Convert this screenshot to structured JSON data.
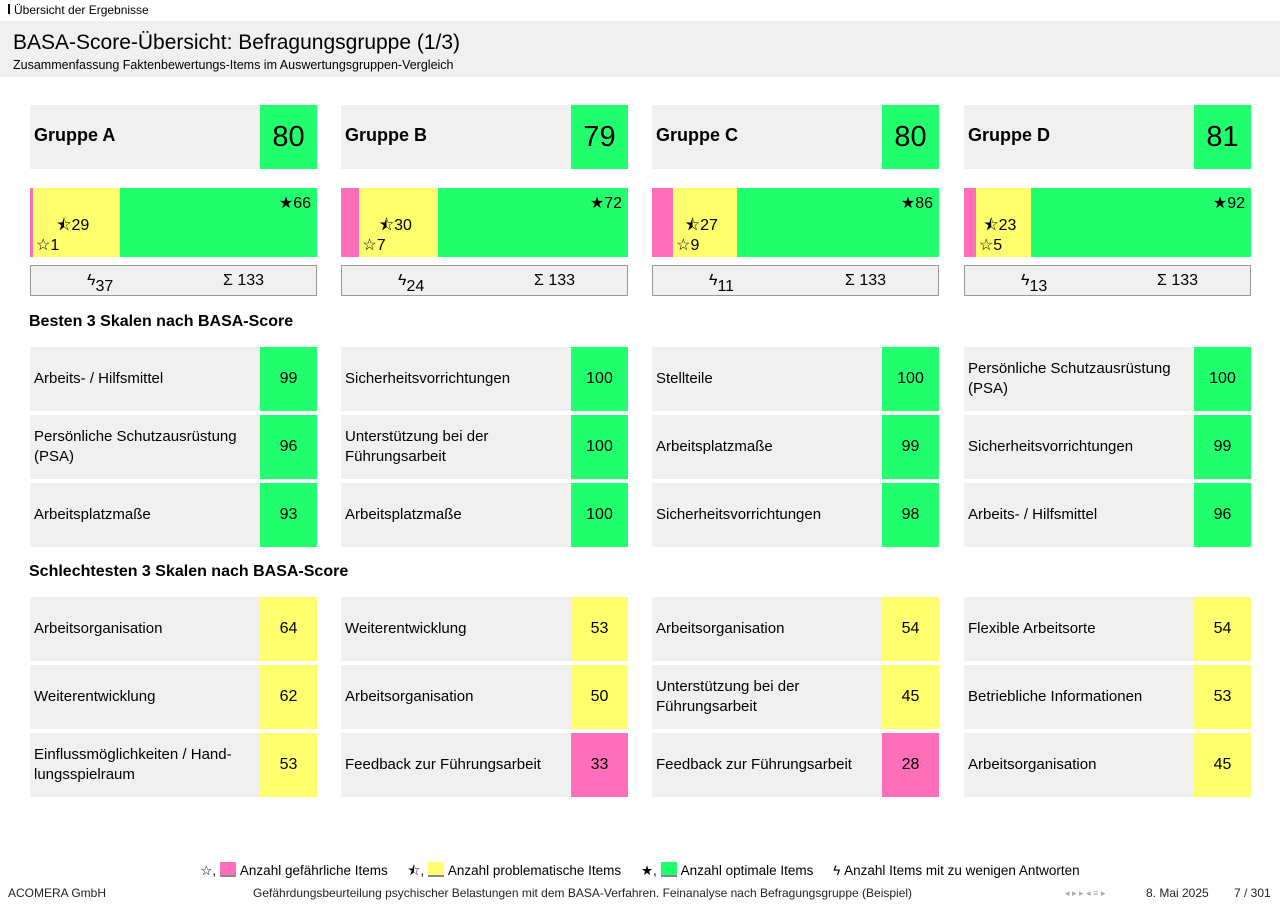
{
  "breadcrumb": "Übersicht der Ergebnisse",
  "title": "BASA-Score-Übersicht: Befragungsgruppe (1/3)",
  "subtitle": "Zusammenfassung Faktenbewertungs-Items im Auswertungsgruppen-Vergleich",
  "colors": {
    "green": "#22ff6e",
    "yellow": "#ffff6e",
    "pink": "#ff6eb9"
  },
  "groups": [
    {
      "name": "Gruppe A",
      "score": "80",
      "dangerous": 1,
      "problematic": 29,
      "optimal": 66,
      "few_answers": "37",
      "total": "Σ 133",
      "best": [
        {
          "label": "Arbeits- / Hilfsmittel",
          "value": "99",
          "c": "green"
        },
        {
          "label": "Persönliche Schutzausrüstung (PSA)",
          "value": "96",
          "c": "green"
        },
        {
          "label": "Arbeitsplatzmaße",
          "value": "93",
          "c": "green"
        }
      ],
      "worst": [
        {
          "label": "Arbeitsorganisation",
          "value": "64",
          "c": "yellow"
        },
        {
          "label": "Weiterentwicklung",
          "value": "62",
          "c": "yellow"
        },
        {
          "label": "Einflussmöglichkeiten / Hand-lungsspielraum",
          "value": "53",
          "c": "yellow"
        }
      ]
    },
    {
      "name": "Gruppe B",
      "score": "79",
      "dangerous": 7,
      "problematic": 30,
      "optimal": 72,
      "few_answers": "24",
      "total": "Σ 133",
      "best": [
        {
          "label": "Sicherheitsvorrichtungen",
          "value": "100",
          "c": "green"
        },
        {
          "label": "Unterstützung bei der Führungsarbeit",
          "value": "100",
          "c": "green"
        },
        {
          "label": "Arbeitsplatzmaße",
          "value": "100",
          "c": "green"
        }
      ],
      "worst": [
        {
          "label": "Weiterentwicklung",
          "value": "53",
          "c": "yellow"
        },
        {
          "label": "Arbeitsorganisation",
          "value": "50",
          "c": "yellow"
        },
        {
          "label": "Feedback zur Führungsarbeit",
          "value": "33",
          "c": "pink"
        }
      ]
    },
    {
      "name": "Gruppe C",
      "score": "80",
      "dangerous": 9,
      "problematic": 27,
      "optimal": 86,
      "few_answers": "11",
      "total": "Σ 133",
      "best": [
        {
          "label": "Stellteile",
          "value": "100",
          "c": "green"
        },
        {
          "label": "Arbeitsplatzmaße",
          "value": "99",
          "c": "green"
        },
        {
          "label": "Sicherheitsvorrichtungen",
          "value": "98",
          "c": "green"
        }
      ],
      "worst": [
        {
          "label": "Arbeitsorganisation",
          "value": "54",
          "c": "yellow"
        },
        {
          "label": "Unterstützung bei der Führungsarbeit",
          "value": "45",
          "c": "yellow"
        },
        {
          "label": "Feedback zur Führungsarbeit",
          "value": "28",
          "c": "pink"
        }
      ]
    },
    {
      "name": "Gruppe D",
      "score": "81",
      "dangerous": 5,
      "problematic": 23,
      "optimal": 92,
      "few_answers": "13",
      "total": "Σ 133",
      "best": [
        {
          "label": "Persönliche Schutzausrüstung (PSA)",
          "value": "100",
          "c": "green"
        },
        {
          "label": "Sicherheitsvorrichtungen",
          "value": "99",
          "c": "green"
        },
        {
          "label": "Arbeits- / Hilfsmittel",
          "value": "96",
          "c": "green"
        }
      ],
      "worst": [
        {
          "label": "Flexible Arbeitsorte",
          "value": "54",
          "c": "yellow"
        },
        {
          "label": "Betriebliche Informationen",
          "value": "53",
          "c": "yellow"
        },
        {
          "label": "Arbeitsorganisation",
          "value": "45",
          "c": "yellow"
        }
      ]
    }
  ],
  "sections": {
    "best": "Besten 3 Skalen nach BASA-Score",
    "worst": "Schlechtesten 3 Skalen nach BASA-Score"
  },
  "legend": {
    "dangerous": "Anzahl gefährliche Items",
    "problematic": "Anzahl problematische Items",
    "optimal": "Anzahl optimale Items",
    "few": "Anzahl Items mit zu wenigen Antworten"
  },
  "footer": {
    "company": "ACOMERA GmbH",
    "description": "Gefährdungsbeurteilung psychischer Belastungen mit dem BASA-Verfahren. Feinanalyse nach Befragungsgruppe (Beispiel)",
    "date": "8. Mai 2025",
    "page": "7 / 301"
  }
}
